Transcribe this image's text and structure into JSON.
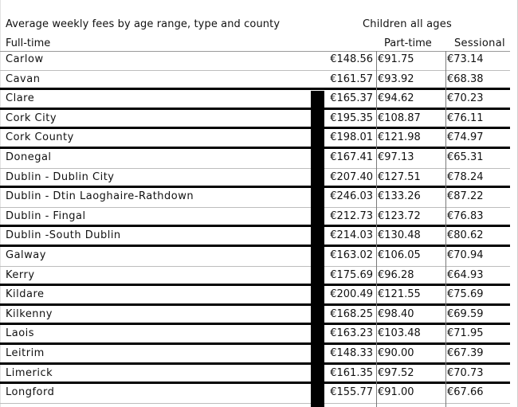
{
  "header": {
    "title": "Average weekly fees by age range, type and county",
    "group_label": "Children all ages",
    "columns": {
      "full_time": "Full-time",
      "part_time": "Part-time",
      "sessional": "Sessional"
    }
  },
  "rows": [
    {
      "county": "Carlow",
      "full_time": "€148.56",
      "part_time": "€91.75",
      "sessional": "€73.14"
    },
    {
      "county": "Cavan",
      "full_time": "€161.57",
      "part_time": "€93.92",
      "sessional": "€68.38"
    },
    {
      "county": "Clare",
      "full_time": "€165.37",
      "part_time": "€94.62",
      "sessional": "€70.23"
    },
    {
      "county": "Cork City",
      "full_time": "€195.35",
      "part_time": "€108.87",
      "sessional": "€76.11"
    },
    {
      "county": "Cork County",
      "full_time": "€198.01",
      "part_time": "€121.98",
      "sessional": "€74.97"
    },
    {
      "county": "Donegal",
      "full_time": "€167.41",
      "part_time": "€97.13",
      "sessional": "€65.31"
    },
    {
      "county": "Dublin - Dublin City",
      "full_time": "€207.40",
      "part_time": "€127.51",
      "sessional": "€78.24"
    },
    {
      "county": "Dublin - Dtin Laoghaire-Rathdown",
      "full_time": "€246.03",
      "part_time": "€133.26",
      "sessional": "€87.22"
    },
    {
      "county": "Dublin - Fingal",
      "full_time": "€212.73",
      "part_time": "€123.72",
      "sessional": "€76.83"
    },
    {
      "county": "Dublin -South Dublin",
      "full_time": "€214.03",
      "part_time": "€130.48",
      "sessional": "€80.62"
    },
    {
      "county": "Galway",
      "full_time": "€163.02",
      "part_time": "€106.05",
      "sessional": "€70.94"
    },
    {
      "county": "Kerry",
      "full_time": "€175.69",
      "part_time": "€96.28",
      "sessional": "€64.93"
    },
    {
      "county": "Kildare",
      "full_time": "€200.49",
      "part_time": "€121.55",
      "sessional": "€75.69"
    },
    {
      "county": "Kilkenny",
      "full_time": "€168.25",
      "part_time": "€98.40",
      "sessional": "€69.59"
    },
    {
      "county": "Laois",
      "full_time": "€163.23",
      "part_time": "€103.48",
      "sessional": "€71.95"
    },
    {
      "county": "Leitrim",
      "full_time": "€148.33",
      "part_time": "€90.00",
      "sessional": "€67.39"
    },
    {
      "county": "Limerick",
      "full_time": "€161.35",
      "part_time": "€97.52",
      "sessional": "€70.73"
    },
    {
      "county": "Longford",
      "full_time": "€155.77",
      "part_time": "€91.00",
      "sessional": "€67.66"
    }
  ]
}
